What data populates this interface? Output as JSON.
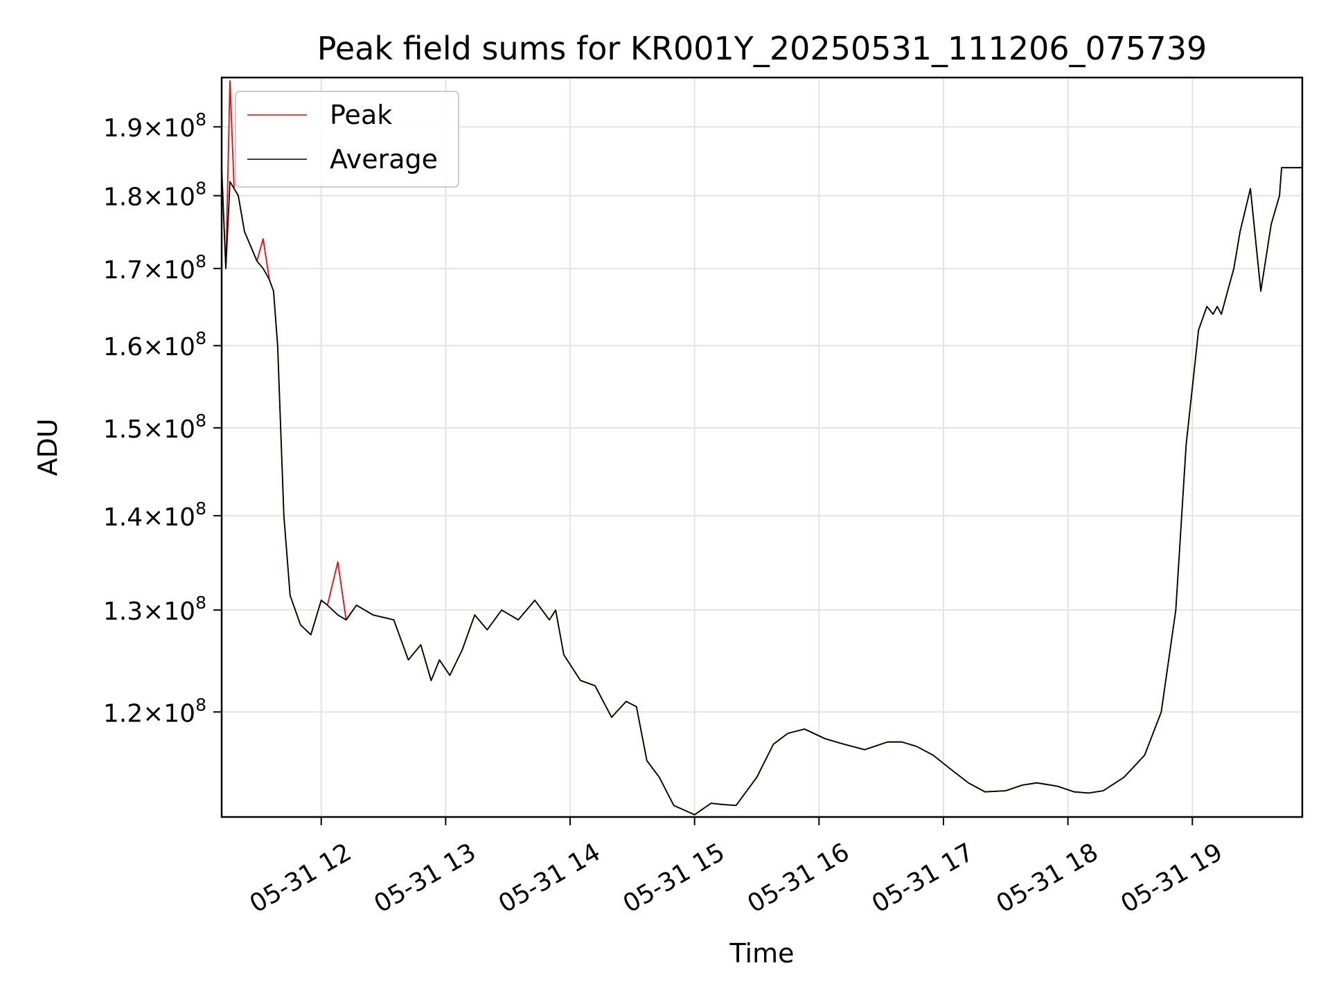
{
  "chart_data": {
    "type": "line",
    "title": "Peak field sums for KR001Y_20250531_111206_075739",
    "xlabel": "Time",
    "ylabel": "ADU",
    "y_scale": "log",
    "grid": true,
    "legend_position": "upper-left",
    "xlim": [
      "05-31 11:12",
      "05-31 19:53"
    ],
    "ylim": [
      110500000.0,
      197500000.0
    ],
    "x_ticks": [
      "05-31 12",
      "05-31 13",
      "05-31 14",
      "05-31 15",
      "05-31 16",
      "05-31 17",
      "05-31 18",
      "05-31 19"
    ],
    "y_ticks": [
      {
        "value": 120000000.0,
        "mantissa": "1.2",
        "exp": "8"
      },
      {
        "value": 130000000.0,
        "mantissa": "1.3",
        "exp": "8"
      },
      {
        "value": 140000000.0,
        "mantissa": "1.4",
        "exp": "8"
      },
      {
        "value": 150000000.0,
        "mantissa": "1.5",
        "exp": "8"
      },
      {
        "value": 160000000.0,
        "mantissa": "1.6",
        "exp": "8"
      },
      {
        "value": 170000000.0,
        "mantissa": "1.7",
        "exp": "8"
      },
      {
        "value": 180000000.0,
        "mantissa": "1.8",
        "exp": "8"
      },
      {
        "value": 190000000.0,
        "mantissa": "1.9",
        "exp": "8"
      }
    ],
    "x": [
      "05-31 11:12",
      "05-31 11:14",
      "05-31 11:16",
      "05-31 11:18",
      "05-31 11:20",
      "05-31 11:23",
      "05-31 11:26",
      "05-31 11:29",
      "05-31 11:32",
      "05-31 11:35",
      "05-31 11:37",
      "05-31 11:39",
      "05-31 11:42",
      "05-31 11:45",
      "05-31 11:50",
      "05-31 11:55",
      "05-31 12:00",
      "05-31 12:03",
      "05-31 12:08",
      "05-31 12:12",
      "05-31 12:17",
      "05-31 12:25",
      "05-31 12:35",
      "05-31 12:42",
      "05-31 12:48",
      "05-31 12:53",
      "05-31 12:57",
      "05-31 13:02",
      "05-31 13:08",
      "05-31 13:14",
      "05-31 13:20",
      "05-31 13:27",
      "05-31 13:35",
      "05-31 13:43",
      "05-31 13:50",
      "05-31 13:53",
      "05-31 13:57",
      "05-31 14:05",
      "05-31 14:12",
      "05-31 14:20",
      "05-31 14:27",
      "05-31 14:32",
      "05-31 14:37",
      "05-31 14:43",
      "05-31 14:50",
      "05-31 15:00",
      "05-31 15:08",
      "05-31 15:13",
      "05-31 15:20",
      "05-31 15:30",
      "05-31 15:38",
      "05-31 15:45",
      "05-31 15:53",
      "05-31 16:03",
      "05-31 16:12",
      "05-31 16:22",
      "05-31 16:33",
      "05-31 16:40",
      "05-31 16:47",
      "05-31 16:55",
      "05-31 17:03",
      "05-31 17:12",
      "05-31 17:20",
      "05-31 17:30",
      "05-31 17:38",
      "05-31 17:45",
      "05-31 17:55",
      "05-31 18:03",
      "05-31 18:10",
      "05-31 18:17",
      "05-31 18:27",
      "05-31 18:37",
      "05-31 18:45",
      "05-31 18:52",
      "05-31 18:57",
      "05-31 19:03",
      "05-31 19:07",
      "05-31 19:10",
      "05-31 19:12",
      "05-31 19:14",
      "05-31 19:17",
      "05-31 19:20",
      "05-31 19:23",
      "05-31 19:28",
      "05-31 19:33",
      "05-31 19:38",
      "05-31 19:42",
      "05-31 19:43",
      "05-31 19:45",
      "05-31 19:48",
      "05-31 19:50",
      "05-31 19:53"
    ],
    "series": [
      {
        "name": "Peak",
        "color": "#ff0000",
        "values": [
          184000000.0,
          170000000.0,
          197000000.0,
          181000000.0,
          180000000.0,
          175000000.0,
          173000000.0,
          171000000.0,
          174000000.0,
          168500000.0,
          167000000.0,
          160000000.0,
          140000000.0,
          131500000.0,
          128500000.0,
          127500000.0,
          131000000.0,
          130500000.0,
          135000000.0,
          129000000.0,
          130500000.0,
          129500000.0,
          129000000.0,
          125000000.0,
          126500000.0,
          123000000.0,
          125000000.0,
          123500000.0,
          126000000.0,
          129500000.0,
          128000000.0,
          130000000.0,
          129000000.0,
          131000000.0,
          129000000.0,
          130000000.0,
          125500000.0,
          123000000.0,
          122500000.0,
          119500000.0,
          121000000.0,
          120500000.0,
          115500000.0,
          114000000.0,
          111500000.0,
          110700000.0,
          111700000.0,
          111600000.0,
          111500000.0,
          114000000.0,
          117000000.0,
          118000000.0,
          118400000.0,
          117500000.0,
          117000000.0,
          116500000.0,
          117200000.0,
          117200000.0,
          116800000.0,
          116000000.0,
          114800000.0,
          113500000.0,
          112700000.0,
          112800000.0,
          113300000.0,
          113500000.0,
          113200000.0,
          112700000.0,
          112600000.0,
          112800000.0,
          114000000.0,
          116000000.0,
          120000000.0,
          130000000.0,
          148000000.0,
          162000000.0,
          165000000.0,
          164000000.0,
          165000000.0,
          164000000.0,
          167000000.0,
          170000000.0,
          175000000.0,
          181000000.0,
          167000000.0,
          176000000.0,
          180000000.0,
          184000000.0,
          184000000.0,
          184000000.0,
          184000000.0,
          184000000.0
        ]
      },
      {
        "name": "Average",
        "color": "#000000",
        "values": [
          184000000.0,
          170000000.0,
          182000000.0,
          181000000.0,
          180000000.0,
          175000000.0,
          173000000.0,
          171000000.0,
          170000000.0,
          168500000.0,
          167000000.0,
          160000000.0,
          140000000.0,
          131500000.0,
          128500000.0,
          127500000.0,
          131000000.0,
          130500000.0,
          129500000.0,
          129000000.0,
          130500000.0,
          129500000.0,
          129000000.0,
          125000000.0,
          126500000.0,
          123000000.0,
          125000000.0,
          123500000.0,
          126000000.0,
          129500000.0,
          128000000.0,
          130000000.0,
          129000000.0,
          131000000.0,
          129000000.0,
          130000000.0,
          125500000.0,
          123000000.0,
          122500000.0,
          119500000.0,
          121000000.0,
          120500000.0,
          115500000.0,
          114000000.0,
          111500000.0,
          110700000.0,
          111700000.0,
          111600000.0,
          111500000.0,
          114000000.0,
          117000000.0,
          118000000.0,
          118400000.0,
          117500000.0,
          117000000.0,
          116500000.0,
          117200000.0,
          117200000.0,
          116800000.0,
          116000000.0,
          114800000.0,
          113500000.0,
          112700000.0,
          112800000.0,
          113300000.0,
          113500000.0,
          113200000.0,
          112700000.0,
          112600000.0,
          112800000.0,
          114000000.0,
          116000000.0,
          120000000.0,
          130000000.0,
          148000000.0,
          162000000.0,
          165000000.0,
          164000000.0,
          165000000.0,
          164000000.0,
          167000000.0,
          170000000.0,
          175000000.0,
          181000000.0,
          167000000.0,
          176000000.0,
          180000000.0,
          184000000.0,
          184000000.0,
          184000000.0,
          184000000.0,
          184000000.0
        ]
      }
    ]
  }
}
